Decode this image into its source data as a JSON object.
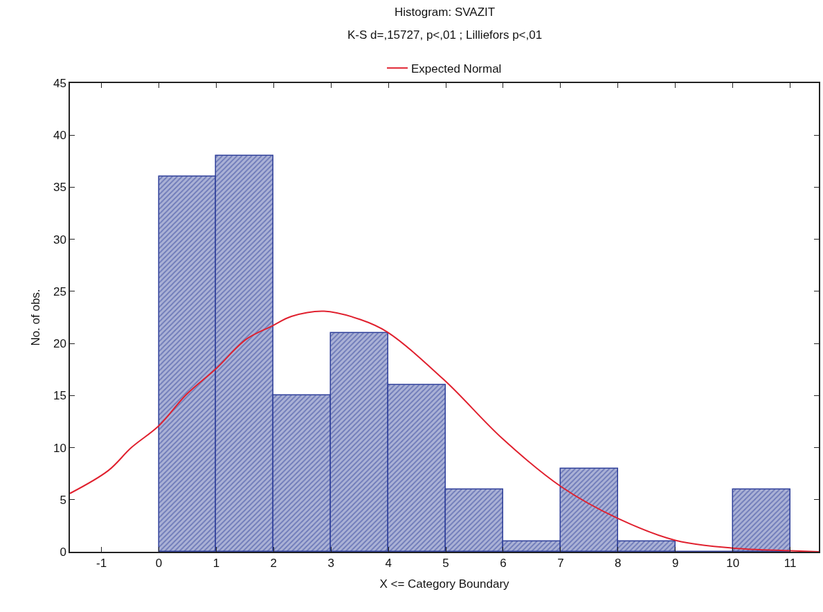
{
  "chart_data": {
    "type": "histogram",
    "title": "Histogram: SVAZIT",
    "subtitle": "K-S d=,15727, p<,01 ; Lilliefors p<,01",
    "xlabel": "X <= Category Boundary",
    "ylabel": "No. of obs.",
    "bins": [
      0,
      1,
      2,
      3,
      4,
      5,
      6,
      7,
      8,
      9,
      10,
      11
    ],
    "values": [
      36,
      38,
      15,
      21,
      16,
      6,
      1,
      8,
      1,
      0,
      6
    ],
    "color": "#2e3f99",
    "series": [
      {
        "type": "line",
        "name": "Expected Normal",
        "color": "#e0202e",
        "x": [
          -1.55,
          -0.88,
          -0.48,
          0,
          0.48,
          1.0,
          1.52,
          1.98,
          2.31,
          2.88,
          3.51,
          3.98,
          4.99,
          5.98,
          7.01,
          8.0,
          9.0,
          10.0,
          11.0,
          11.5
        ],
        "values": [
          5.6,
          7.8,
          10.0,
          12.1,
          15.1,
          17.6,
          20.4,
          21.7,
          22.6,
          23.1,
          22.3,
          21.1,
          16.4,
          10.9,
          6.25,
          3.2,
          1.1,
          0.35,
          0.1,
          0.0
        ]
      }
    ],
    "xlim": [
      -1.55,
      11.5
    ],
    "xticks": [
      -1,
      0,
      1,
      2,
      3,
      4,
      5,
      6,
      7,
      8,
      9,
      10,
      11
    ],
    "ylim": [
      0,
      45
    ],
    "yticks": [
      0,
      5,
      10,
      15,
      20,
      25,
      30,
      35,
      40,
      45
    ],
    "legend": "top",
    "marker": "none",
    "line_style": "solid"
  }
}
